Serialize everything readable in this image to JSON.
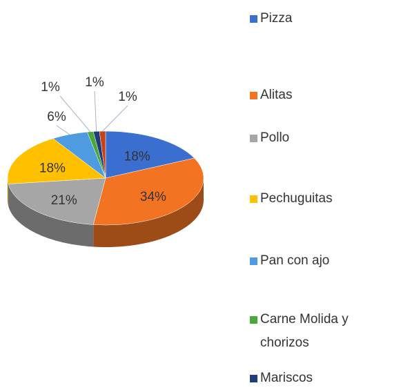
{
  "chart_data": {
    "type": "pie",
    "three_d": true,
    "categories": [
      "Pizza",
      "Alitas",
      "Pollo",
      "Pechuguitas",
      "Pan con ajo",
      "Carne Molida y chorizos",
      "Mariscos",
      null
    ],
    "values": [
      18,
      34,
      21,
      18,
      6,
      1,
      1,
      1
    ],
    "value_labels": [
      "18%",
      "34%",
      "21%",
      "18%",
      "6%",
      "1%",
      "1%",
      "1%"
    ],
    "colors": [
      "#3a6fd0",
      "#f27423",
      "#a6a6a6",
      "#ffc000",
      "#4e9be0",
      "#4aa83a",
      "#1f3d7a",
      "#c4441a"
    ],
    "legend": "right"
  }
}
